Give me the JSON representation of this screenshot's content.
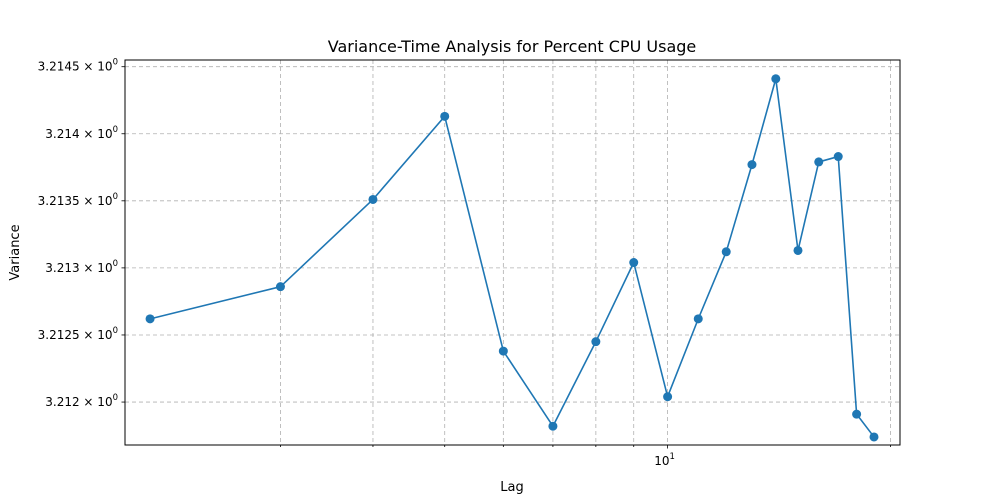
{
  "chart_data": {
    "type": "line",
    "title": "Variance-Time Analysis for Percent CPU Usage",
    "xlabel": "Lag",
    "ylabel": "Variance",
    "x_scale": "log",
    "y_scale": "log",
    "xlim": [
      1.85,
      20.6
    ],
    "ylim": [
      3.21168,
      3.21455
    ],
    "grid": true,
    "x_tick_values": [
      3,
      4,
      5,
      6,
      7,
      8,
      9,
      10,
      20
    ],
    "x_tick_labels": [
      {
        "base": "10",
        "exp": "1",
        "value": 10
      }
    ],
    "y_ticks": [
      {
        "value": 3.212,
        "mantissa": "3.212",
        "base": "10",
        "exp": "0"
      },
      {
        "value": 3.2125,
        "mantissa": "3.2125",
        "base": "10",
        "exp": "0"
      },
      {
        "value": 3.213,
        "mantissa": "3.213",
        "base": "10",
        "exp": "0"
      },
      {
        "value": 3.2135,
        "mantissa": "3.2135",
        "base": "10",
        "exp": "0"
      },
      {
        "value": 3.214,
        "mantissa": "3.214",
        "base": "10",
        "exp": "0"
      },
      {
        "value": 3.2145,
        "mantissa": "3.2145",
        "base": "10",
        "exp": "0"
      }
    ],
    "series": [
      {
        "color": "#1f77b4",
        "marker": "circle",
        "x": [
          2,
          3,
          4,
          5,
          6,
          7,
          8,
          9,
          10,
          11,
          12,
          13,
          14,
          15,
          16,
          17,
          18,
          19
        ],
        "y": [
          3.21262,
          3.21286,
          3.21351,
          3.21413,
          3.21238,
          3.21182,
          3.21245,
          3.21304,
          3.21204,
          3.21262,
          3.21312,
          3.21377,
          3.21441,
          3.21313,
          3.21379,
          3.21383,
          3.21191,
          3.21174
        ]
      }
    ]
  }
}
